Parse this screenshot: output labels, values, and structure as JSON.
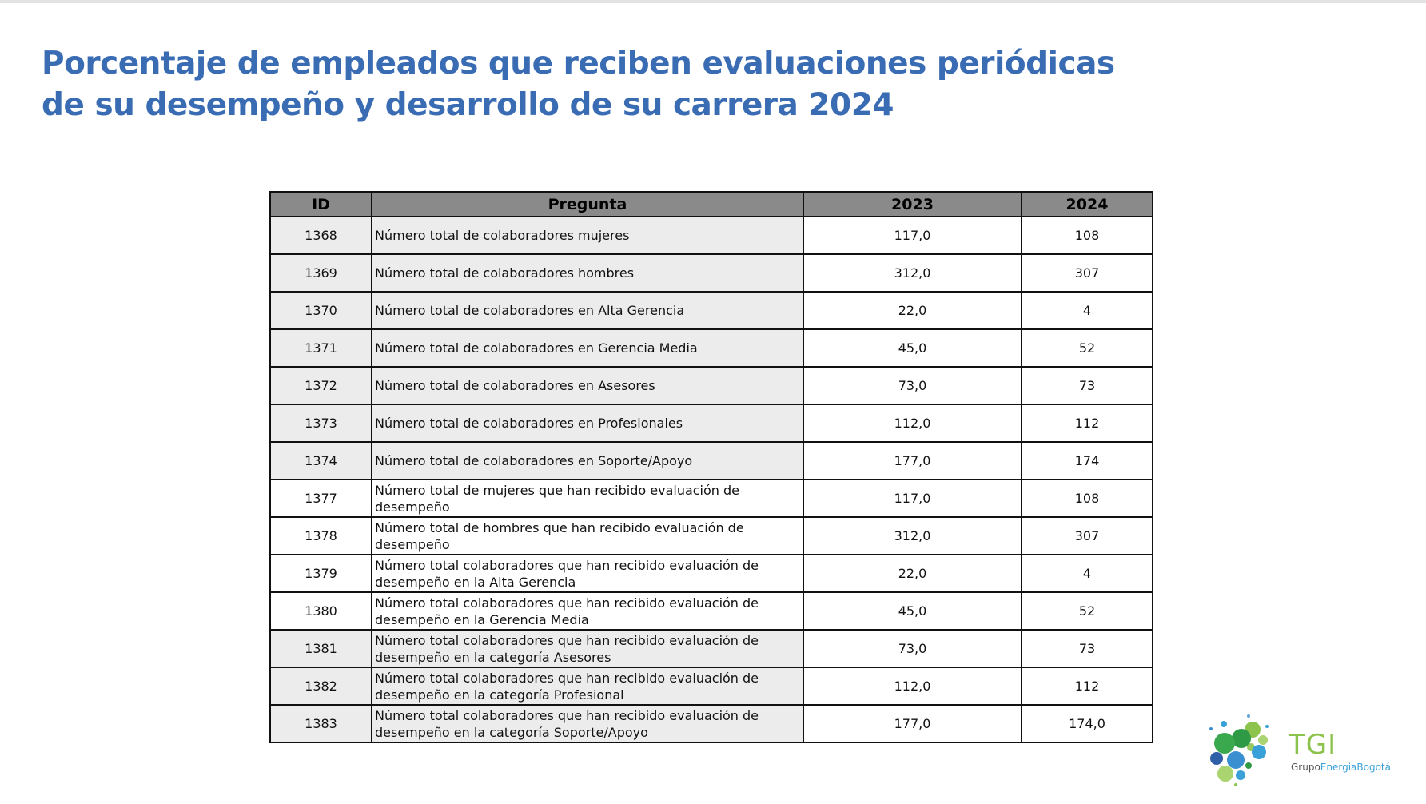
{
  "title": "Porcentaje de empleados que reciben evaluaciones periódicas de su desempeño y  desarrollo de su carrera 2024",
  "table": {
    "headers": {
      "id": "ID",
      "question": "Pregunta",
      "y2023": "2023",
      "y2024": "2024"
    },
    "rows": [
      {
        "id": "1368",
        "question": "Número total de colaboradores mujeres",
        "y2023": "117,0",
        "y2024": "108"
      },
      {
        "id": "1369",
        "question": "Número total de colaboradores hombres",
        "y2023": "312,0",
        "y2024": "307"
      },
      {
        "id": "1370",
        "question": "Número total de colaboradores en Alta Gerencia",
        "y2023": "22,0",
        "y2024": "4"
      },
      {
        "id": "1371",
        "question": "Número total de colaboradores en Gerencia Media",
        "y2023": "45,0",
        "y2024": "52"
      },
      {
        "id": "1372",
        "question": "Número total de colaboradores en Asesores",
        "y2023": "73,0",
        "y2024": "73"
      },
      {
        "id": "1373",
        "question": "Número total de colaboradores en Profesionales",
        "y2023": "112,0",
        "y2024": "112"
      },
      {
        "id": "1374",
        "question": "Número total de colaboradores en Soporte/Apoyo",
        "y2023": "177,0",
        "y2024": "174"
      },
      {
        "id": "1377",
        "question": "Número total de mujeres que han recibido evaluación de desempeño",
        "y2023": "117,0",
        "y2024": "108"
      },
      {
        "id": "1378",
        "question": "Número total de hombres que han recibido evaluación de desempeño",
        "y2023": "312,0",
        "y2024": "307"
      },
      {
        "id": "1379",
        "question": "Número total colaboradores que han recibido evaluación de desempeño en la Alta Gerencia",
        "y2023": "22,0",
        "y2024": "4"
      },
      {
        "id": "1380",
        "question": "Número total colaboradores que han recibido evaluación de desempeño en la Gerencia Media",
        "y2023": "45,0",
        "y2024": "52"
      },
      {
        "id": "1381",
        "question": "Número total colaboradores que han recibido evaluación de desempeño en la categoría Asesores",
        "y2023": "73,0",
        "y2024": "73"
      },
      {
        "id": "1382",
        "question": "Número total colaboradores que han recibido evaluación de desempeño en la categoría Profesional",
        "y2023": "112,0",
        "y2024": "112"
      },
      {
        "id": "1383",
        "question": "Número total colaboradores que han recibido evaluación de desempeño en la categoría Soporte/Apoyo",
        "y2023": "177,0",
        "y2024": "174,0"
      }
    ]
  },
  "logo": {
    "name": "TGI",
    "sub_a": "Grupo",
    "sub_b": "EnergiaBogotá"
  },
  "colors": {
    "title": "#3a6cb4",
    "header_bg": "#8a8a8a",
    "row_gray": "#ececec",
    "logo_green": "#8cc34d",
    "logo_blue": "#3aa0d8"
  }
}
